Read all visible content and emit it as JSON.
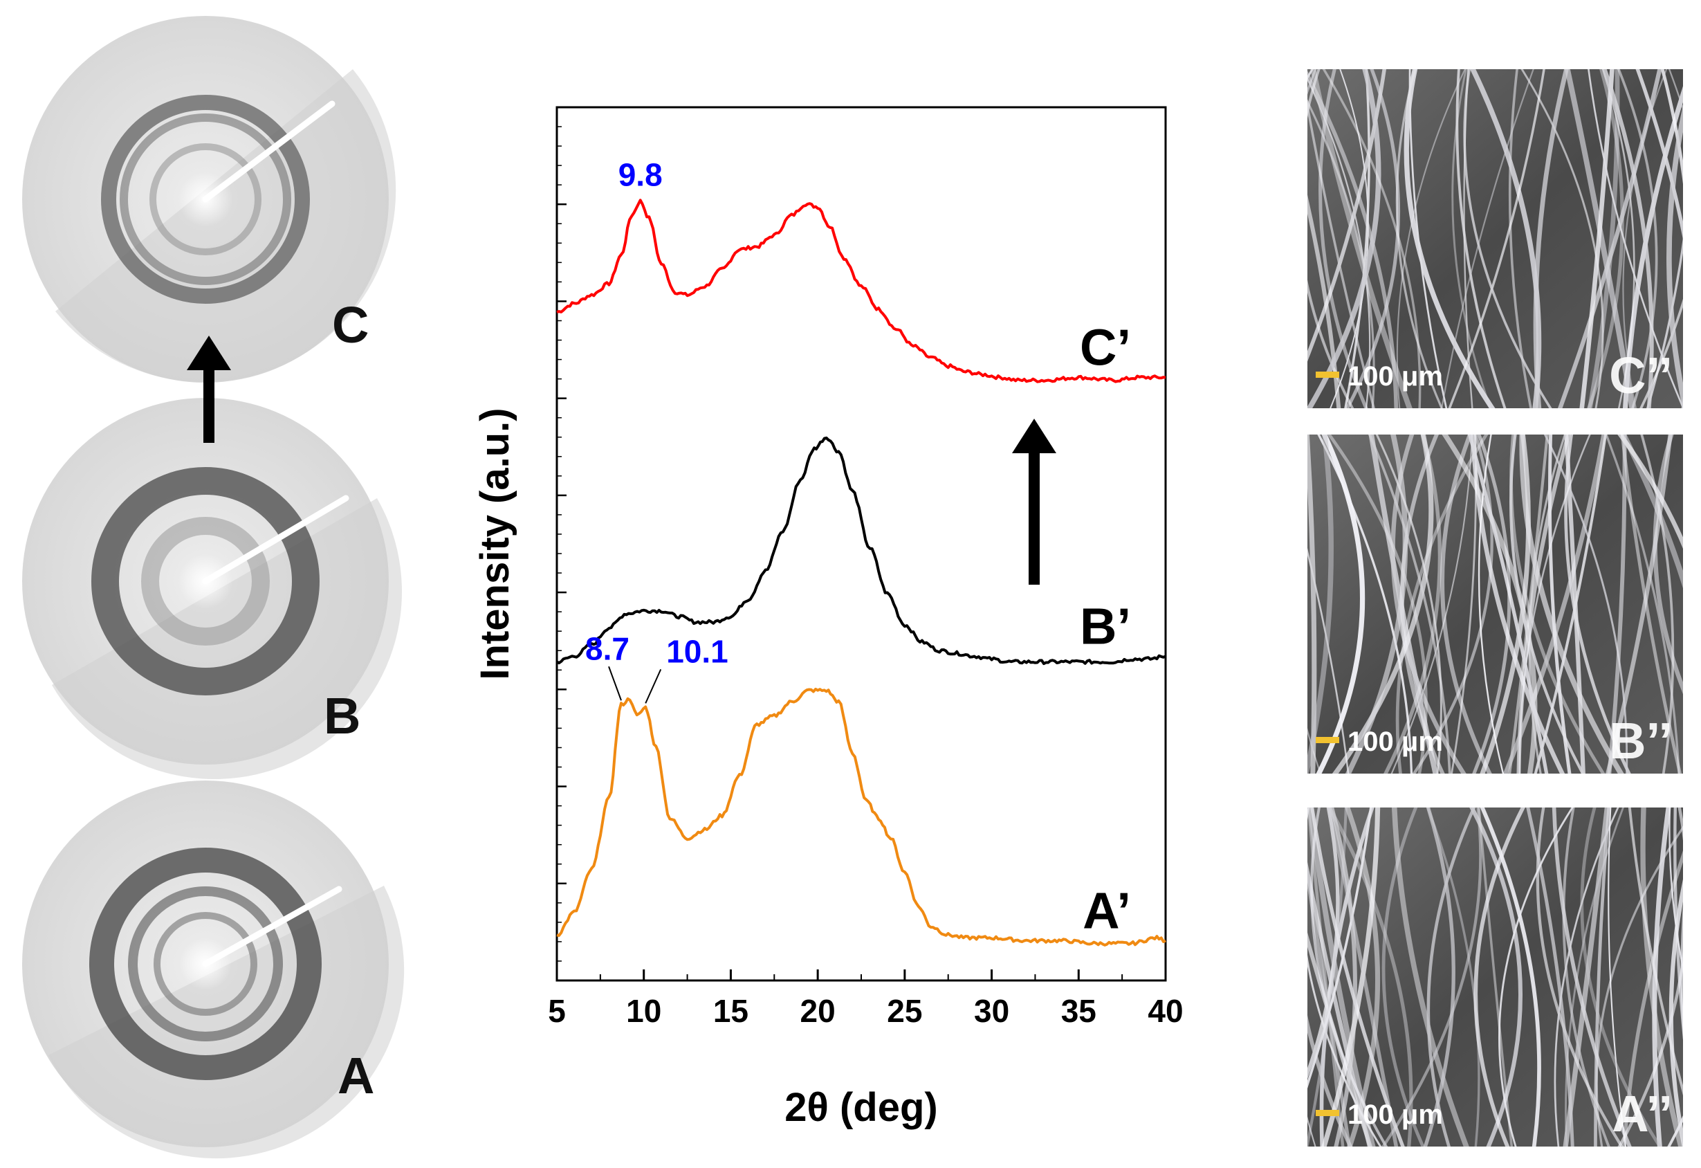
{
  "panels": {
    "saxs_patterns": [
      {
        "label": "C"
      },
      {
        "label": "B"
      },
      {
        "label": "A"
      }
    ],
    "photos": [
      {
        "label": "C’’",
        "scale_bar": "100 μm"
      },
      {
        "label": "B’’",
        "scale_bar": "100 μm"
      },
      {
        "label": "A’’",
        "scale_bar": "100 μm"
      }
    ]
  },
  "chart_data": {
    "type": "line",
    "xlabel": "2θ (deg)",
    "ylabel": "Intensity (a.u.)",
    "xlim": [
      5,
      40
    ],
    "xticks": [
      5,
      10,
      15,
      20,
      25,
      30,
      35,
      40
    ],
    "yticks_shown": false,
    "series": [
      {
        "name": "C’",
        "color": "#ff0000",
        "offset": 2,
        "x": [
          5,
          6,
          7,
          8,
          8.7,
          9.3,
          9.8,
          10.3,
          11,
          11.8,
          12.5,
          13.5,
          14.5,
          15.5,
          16.5,
          17.5,
          18.5,
          19.3,
          20,
          20.7,
          21.5,
          22.5,
          23.5,
          24.5,
          25.5,
          26.5,
          27.5,
          28.5,
          29.5,
          30.5,
          31.5,
          33,
          35,
          37,
          38.5,
          40
        ],
        "y": [
          0.23,
          0.26,
          0.29,
          0.33,
          0.43,
          0.57,
          0.62,
          0.56,
          0.4,
          0.3,
          0.29,
          0.32,
          0.38,
          0.45,
          0.46,
          0.5,
          0.57,
          0.61,
          0.6,
          0.53,
          0.42,
          0.32,
          0.24,
          0.17,
          0.11,
          0.07,
          0.04,
          0.02,
          0.01,
          0.0,
          -0.01,
          -0.01,
          0.0,
          -0.01,
          0.0,
          0.0
        ],
        "annotations": [
          {
            "x": 9.8,
            "text": "9.8"
          }
        ]
      },
      {
        "name": "B’",
        "color": "#000000",
        "offset": 1,
        "x": [
          5,
          6,
          7,
          8,
          9,
          10,
          11,
          12,
          13,
          14,
          15,
          16,
          17,
          18,
          19,
          19.8,
          20.5,
          21.2,
          22,
          23,
          24,
          25,
          26,
          27,
          28,
          29,
          30,
          31,
          32,
          33,
          34,
          35,
          36,
          37,
          38,
          39,
          40
        ],
        "y": [
          0.0,
          0.02,
          0.06,
          0.12,
          0.17,
          0.18,
          0.18,
          0.16,
          0.14,
          0.14,
          0.16,
          0.22,
          0.32,
          0.46,
          0.64,
          0.75,
          0.79,
          0.74,
          0.6,
          0.4,
          0.24,
          0.13,
          0.07,
          0.04,
          0.03,
          0.02,
          0.01,
          0.0,
          0.0,
          0.0,
          0.0,
          0.0,
          0.0,
          0.0,
          0.01,
          0.01,
          0.02
        ]
      },
      {
        "name": "A’",
        "color": "#f08a12",
        "offset": 0,
        "x": [
          5,
          6,
          7,
          8,
          8.7,
          9.2,
          9.6,
          10.1,
          10.7,
          11.5,
          12.5,
          13.5,
          14.5,
          15.5,
          16.5,
          17.5,
          18.5,
          19.5,
          20.5,
          21.2,
          22,
          22.8,
          23.5,
          24.2,
          25,
          25.8,
          26.5,
          27.5,
          28.5,
          30,
          32,
          34,
          36,
          38,
          39.5,
          40
        ],
        "y": [
          0.04,
          0.12,
          0.27,
          0.52,
          0.85,
          0.87,
          0.81,
          0.84,
          0.7,
          0.45,
          0.38,
          0.41,
          0.46,
          0.6,
          0.78,
          0.81,
          0.86,
          0.9,
          0.9,
          0.86,
          0.68,
          0.51,
          0.45,
          0.38,
          0.26,
          0.14,
          0.07,
          0.04,
          0.03,
          0.03,
          0.02,
          0.02,
          0.01,
          0.01,
          0.03,
          0.02
        ],
        "annotations": [
          {
            "x": 8.7,
            "text": "8.7"
          },
          {
            "x": 10.1,
            "text": "10.1"
          }
        ]
      }
    ],
    "series_label_color": "#000000",
    "annotation_color": "#0000ff"
  }
}
